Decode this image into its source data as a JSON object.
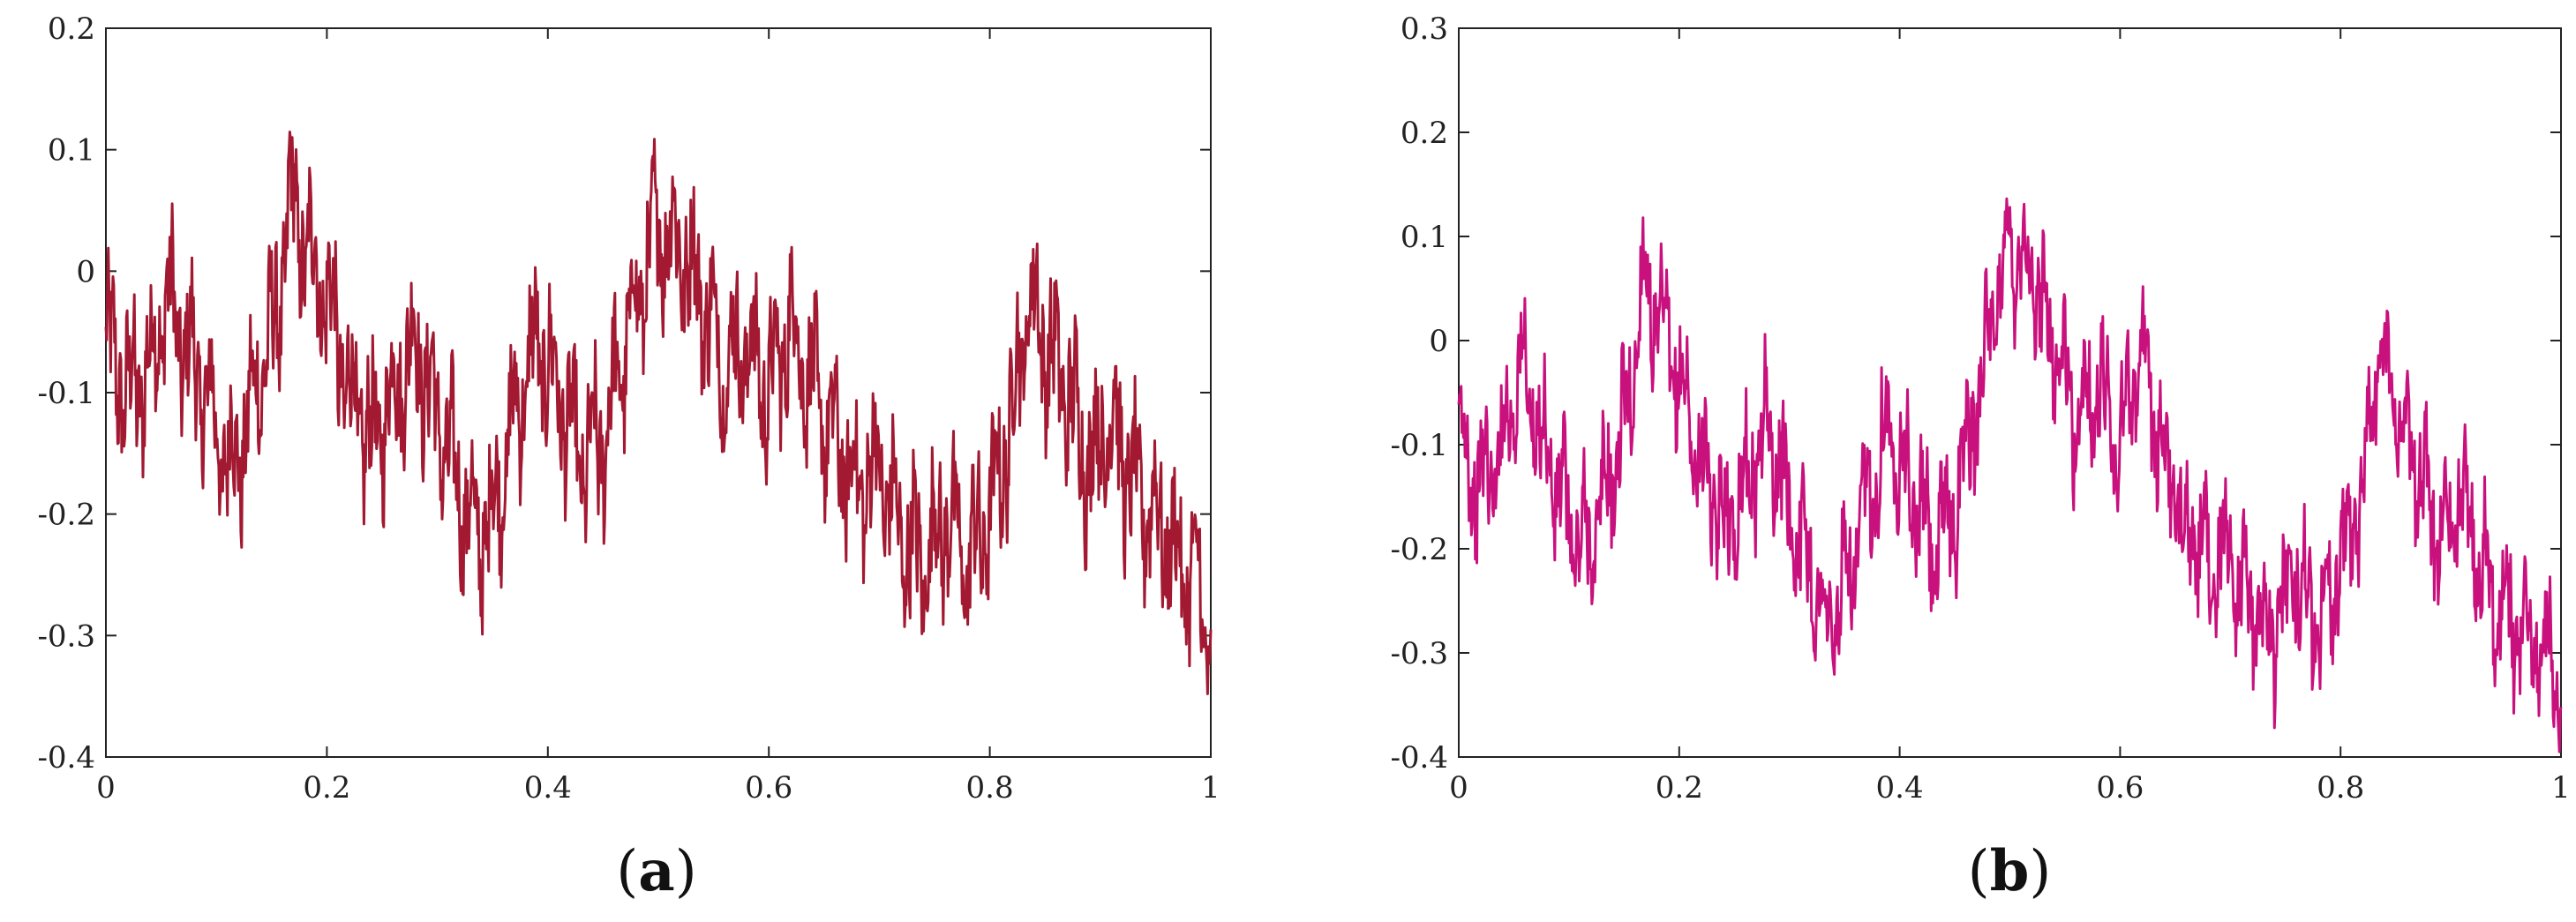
{
  "chart_data": [
    {
      "type": "line",
      "caption": {
        "open": "(",
        "letter": "a",
        "close": ")"
      },
      "color": "#A21931",
      "xlim": [
        0,
        1
      ],
      "ylim": [
        -0.4,
        0.2
      ],
      "xticks": [
        0,
        0.2,
        0.4,
        0.6,
        0.8,
        1
      ],
      "xtick_labels": [
        "0",
        "0.2",
        "0.4",
        "0.6",
        "0.8",
        "1"
      ],
      "yticks": [
        -0.4,
        -0.3,
        -0.2,
        -0.1,
        0,
        0.1,
        0.2
      ],
      "ytick_labels": [
        "-0.4",
        "-0.3",
        "-0.2",
        "-0.1",
        "0",
        "0.1",
        "0.2"
      ],
      "grid": false,
      "x": [
        0,
        0.02,
        0.04,
        0.055,
        0.07,
        0.09,
        0.11,
        0.125,
        0.14,
        0.155,
        0.167,
        0.18,
        0.2,
        0.22,
        0.24,
        0.26,
        0.28,
        0.3,
        0.32,
        0.335,
        0.35,
        0.37,
        0.39,
        0.41,
        0.43,
        0.45,
        0.47,
        0.5,
        0.52,
        0.54,
        0.56,
        0.58,
        0.6,
        0.62,
        0.64,
        0.66,
        0.68,
        0.7,
        0.72,
        0.74,
        0.76,
        0.78,
        0.8,
        0.82,
        0.835,
        0.85,
        0.87,
        0.89,
        0.91,
        0.93,
        0.95,
        0.97,
        0.99,
        1
      ],
      "y": [
        -0.06,
        -0.1,
        -0.08,
        -0.02,
        -0.06,
        -0.1,
        -0.16,
        -0.14,
        -0.08,
        -0.04,
        0.06,
        0.02,
        -0.02,
        -0.1,
        -0.14,
        -0.1,
        -0.06,
        -0.12,
        -0.18,
        -0.22,
        -0.2,
        -0.12,
        -0.06,
        -0.1,
        -0.16,
        -0.14,
        -0.06,
        0.04,
        0.02,
        -0.02,
        -0.08,
        -0.06,
        -0.1,
        -0.04,
        -0.1,
        -0.14,
        -0.18,
        -0.16,
        -0.22,
        -0.24,
        -0.2,
        -0.24,
        -0.2,
        -0.12,
        -0.02,
        -0.06,
        -0.1,
        -0.16,
        -0.12,
        -0.18,
        -0.2,
        -0.24,
        -0.26,
        -0.32
      ]
    },
    {
      "type": "line",
      "caption": {
        "open": "(",
        "letter": "b",
        "close": ")"
      },
      "color": "#C9117E",
      "xlim": [
        0,
        1
      ],
      "ylim": [
        -0.4,
        0.3
      ],
      "xticks": [
        0,
        0.2,
        0.4,
        0.6,
        0.8,
        1
      ],
      "xtick_labels": [
        "0",
        "0.2",
        "0.4",
        "0.6",
        "0.8",
        "1"
      ],
      "yticks": [
        -0.4,
        -0.3,
        -0.2,
        -0.1,
        0,
        0.1,
        0.2,
        0.3
      ],
      "ytick_labels": [
        "-0.4",
        "-0.3",
        "-0.2",
        "-0.1",
        "0",
        "0.1",
        "0.2",
        "0.3"
      ],
      "grid": false,
      "x": [
        0,
        0.02,
        0.04,
        0.055,
        0.07,
        0.09,
        0.11,
        0.125,
        0.14,
        0.155,
        0.167,
        0.18,
        0.2,
        0.22,
        0.24,
        0.26,
        0.28,
        0.3,
        0.32,
        0.335,
        0.35,
        0.37,
        0.39,
        0.41,
        0.43,
        0.45,
        0.47,
        0.5,
        0.52,
        0.54,
        0.56,
        0.58,
        0.6,
        0.62,
        0.64,
        0.66,
        0.68,
        0.7,
        0.72,
        0.74,
        0.76,
        0.78,
        0.8,
        0.82,
        0.835,
        0.85,
        0.87,
        0.89,
        0.91,
        0.93,
        0.95,
        0.97,
        0.99,
        1
      ],
      "y": [
        -0.1,
        -0.14,
        -0.1,
        -0.02,
        -0.08,
        -0.14,
        -0.2,
        -0.18,
        -0.12,
        -0.06,
        0.06,
        0.02,
        -0.04,
        -0.12,
        -0.18,
        -0.14,
        -0.08,
        -0.16,
        -0.22,
        -0.28,
        -0.24,
        -0.16,
        -0.08,
        -0.14,
        -0.2,
        -0.16,
        -0.06,
        0.1,
        0.06,
        0,
        -0.08,
        -0.04,
        -0.1,
        0,
        -0.12,
        -0.18,
        -0.22,
        -0.2,
        -0.26,
        -0.28,
        -0.22,
        -0.28,
        -0.22,
        -0.14,
        0,
        -0.06,
        -0.12,
        -0.2,
        -0.14,
        -0.22,
        -0.26,
        -0.28,
        -0.3,
        -0.36
      ]
    }
  ]
}
